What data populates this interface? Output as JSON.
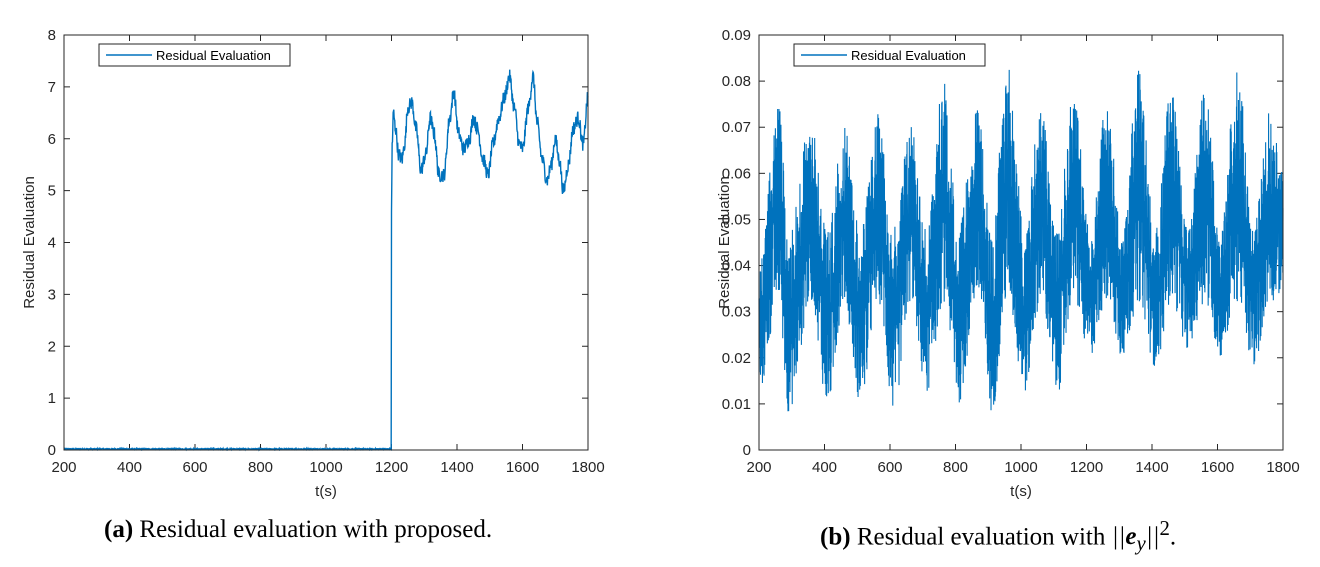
{
  "line_color": "#0072BD",
  "chart_data": [
    {
      "type": "line",
      "panel": "a",
      "title": "",
      "legend": "Residual Evaluation",
      "legend_position": "top-left",
      "xlabel": "t(s)",
      "ylabel": "Residual Evaluation",
      "xlim": [
        200,
        1800
      ],
      "ylim": [
        0,
        8
      ],
      "xticks": [
        200,
        400,
        600,
        800,
        1000,
        1200,
        1400,
        1600,
        1800
      ],
      "yticks": [
        0,
        1,
        2,
        3,
        4,
        5,
        6,
        7,
        8
      ],
      "series": [
        {
          "name": "Residual Evaluation",
          "description": "near zero until 1200 s, then jumps to ~6 and fluctuates between ~4.9 and ~7.3",
          "x": [
            200,
            1199,
            1200,
            1202,
            1206,
            1212,
            1222,
            1232,
            1240,
            1250,
            1262,
            1275,
            1290,
            1305,
            1318,
            1330,
            1345,
            1360,
            1378,
            1390,
            1405,
            1420,
            1438,
            1450,
            1462,
            1480,
            1495,
            1510,
            1528,
            1545,
            1560,
            1575,
            1590,
            1600,
            1618,
            1632,
            1645,
            1660,
            1675,
            1688,
            1700,
            1712,
            1725,
            1740,
            1755,
            1770,
            1785,
            1800
          ],
          "values": [
            0.02,
            0.02,
            4.5,
            5.9,
            6.5,
            6.2,
            5.7,
            5.6,
            5.9,
            6.6,
            6.7,
            6.2,
            5.4,
            5.7,
            6.4,
            6.1,
            5.3,
            5.3,
            6.4,
            6.9,
            6.1,
            5.8,
            6.0,
            6.4,
            6.2,
            5.6,
            5.3,
            5.9,
            6.4,
            6.8,
            7.2,
            6.6,
            5.9,
            5.8,
            6.6,
            7.2,
            6.3,
            5.6,
            5.2,
            5.5,
            6.0,
            5.6,
            5.0,
            5.5,
            6.2,
            6.4,
            5.9,
            6.8
          ]
        }
      ]
    },
    {
      "type": "line",
      "panel": "b",
      "title": "",
      "legend": "Residual Evaluation",
      "legend_position": "top-left",
      "xlabel": "t(s)",
      "ylabel": "Residual Evaluation",
      "xlim": [
        200,
        1800
      ],
      "ylim": [
        0,
        0.09
      ],
      "xticks": [
        200,
        400,
        600,
        800,
        1000,
        1200,
        1400,
        1600,
        1800
      ],
      "yticks": [
        0,
        0.01,
        0.02,
        0.03,
        0.04,
        0.05,
        0.06,
        0.07,
        0.08,
        0.09
      ],
      "ytick_labels": [
        "0",
        "0.01",
        "0.02",
        "0.03",
        "0.04",
        "0.05",
        "0.06",
        "0.07",
        "0.08",
        "0.09"
      ],
      "series": [
        {
          "name": "Residual Evaluation",
          "description": "dense high-frequency oscillation, period ~100 s, band roughly 0.01 to 0.08",
          "period_s": 100,
          "peak_times": [
            260,
            360,
            460,
            565,
            665,
            765,
            865,
            960,
            1060,
            1160,
            1260,
            1360,
            1460,
            1560,
            1660,
            1760
          ],
          "trough_times": [
            290,
            410,
            510,
            610,
            710,
            810,
            910,
            1010,
            1110,
            1210,
            1310,
            1410,
            1510,
            1610,
            1710
          ],
          "band_min": [
            0.008,
            0.009,
            0.01,
            0.008,
            0.012,
            0.01,
            0.008,
            0.012,
            0.012,
            0.02,
            0.02,
            0.018,
            0.022,
            0.02,
            0.018
          ],
          "band_max_upper": [
            0.075,
            0.072,
            0.07,
            0.073,
            0.072,
            0.08,
            0.075,
            0.084,
            0.075,
            0.078,
            0.075,
            0.083,
            0.08,
            0.078,
            0.084,
            0.074
          ]
        }
      ]
    }
  ],
  "captions": {
    "a": {
      "label": "(a)",
      "text": " Residual evaluation with proposed."
    },
    "b": {
      "label": "(b)",
      "text_before": " Residual evaluation with ",
      "norm_open": "||",
      "vec": "e",
      "sub": "y",
      "norm_close": "||",
      "sup": "2",
      "text_after": "."
    }
  }
}
